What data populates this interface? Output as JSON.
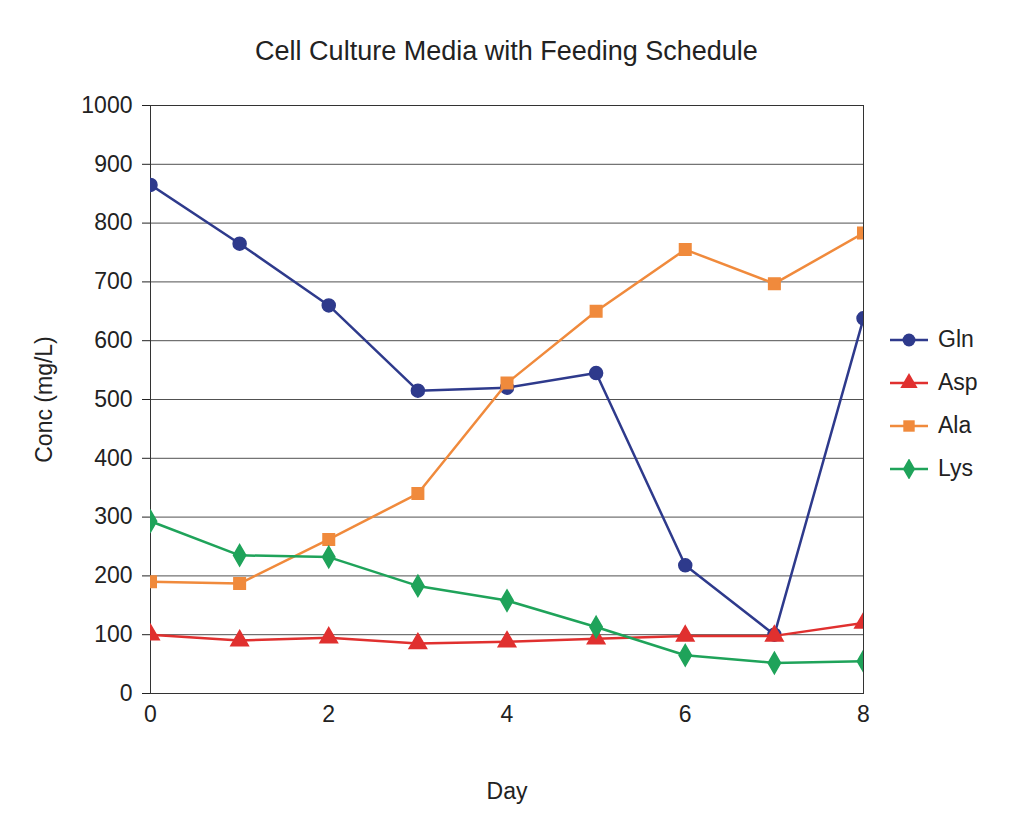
{
  "chart_data": {
    "type": "line",
    "title": "Cell Culture Media with Feeding Schedule",
    "x_label": "Day",
    "y_label": "Conc (mg/L)",
    "x": [
      0,
      1,
      2,
      3,
      4,
      5,
      6,
      7,
      8
    ],
    "series": [
      {
        "name": "Gln",
        "color": "#2e3a8c",
        "marker": "circle",
        "values": [
          865,
          765,
          660,
          515,
          520,
          545,
          218,
          100,
          638
        ]
      },
      {
        "name": "Asp",
        "color": "#e0302f",
        "marker": "triangle",
        "values": [
          100,
          90,
          95,
          85,
          88,
          93,
          98,
          98,
          120
        ]
      },
      {
        "name": "Ala",
        "color": "#f08a3c",
        "marker": "square",
        "values": [
          190,
          187,
          262,
          340,
          528,
          650,
          755,
          697,
          783
        ]
      },
      {
        "name": "Lys",
        "color": "#1fa35a",
        "marker": "diamond",
        "values": [
          293,
          235,
          232,
          183,
          158,
          113,
          65,
          52,
          55
        ]
      }
    ],
    "xlim": [
      0,
      8
    ],
    "xticks": [
      0,
      2,
      4,
      6,
      8
    ],
    "ylim": [
      0,
      1000
    ],
    "yticks": [
      0,
      100,
      200,
      300,
      400,
      500,
      600,
      700,
      800,
      900,
      1000
    ],
    "grid": true,
    "legend": "right"
  }
}
